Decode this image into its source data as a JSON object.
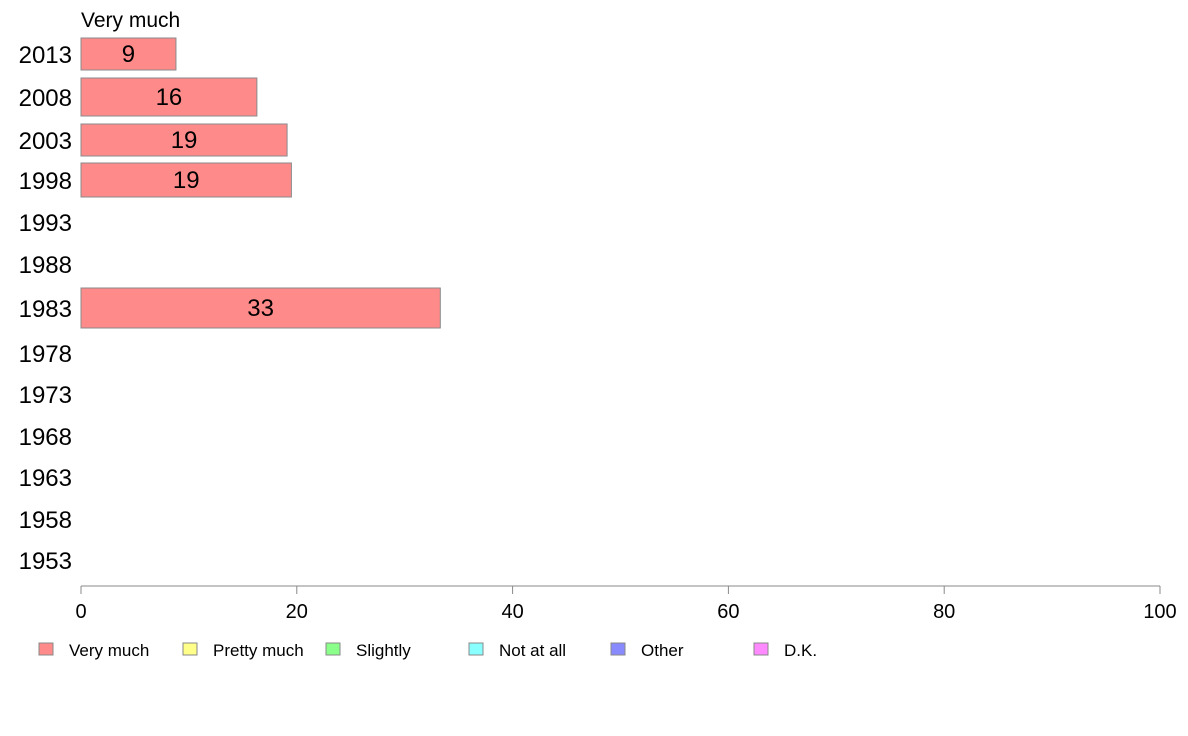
{
  "chart_data": {
    "type": "bar",
    "orientation": "horizontal",
    "stacked": true,
    "series_title": "Very much",
    "categories": [
      "2013",
      "2008",
      "2003",
      "1998",
      "1993",
      "1988",
      "1983",
      "1978",
      "1973",
      "1968",
      "1963",
      "1958",
      "1953"
    ],
    "series": [
      {
        "name": "Very much",
        "color": "#ff8a8a",
        "values": [
          8.8,
          16.3,
          19.1,
          19.5,
          null,
          null,
          null,
          null,
          null,
          null,
          null,
          null,
          null
        ],
        "labels": [
          "9",
          "16",
          "19",
          "19",
          "",
          "",
          "",
          "",
          "",
          "",
          "",
          "",
          ""
        ]
      }
    ],
    "extra_bars": [
      {
        "category": "1983",
        "series": "Very much",
        "value": 33.3,
        "label": "33"
      }
    ],
    "xlim": [
      0,
      100
    ],
    "xticks": [
      "0",
      "20",
      "40",
      "60",
      "80",
      "100"
    ],
    "legend_position": "bottom",
    "legend": [
      {
        "label": "Very much",
        "color": "#ff8a8a"
      },
      {
        "label": "Pretty much",
        "color": "#ffff8a"
      },
      {
        "label": "Slightly",
        "color": "#8aff8a"
      },
      {
        "label": "Not at all",
        "color": "#8affff"
      },
      {
        "label": "Other",
        "color": "#8a8aff"
      },
      {
        "label": "D.K.",
        "color": "#ff8aff"
      }
    ],
    "grid": false
  }
}
